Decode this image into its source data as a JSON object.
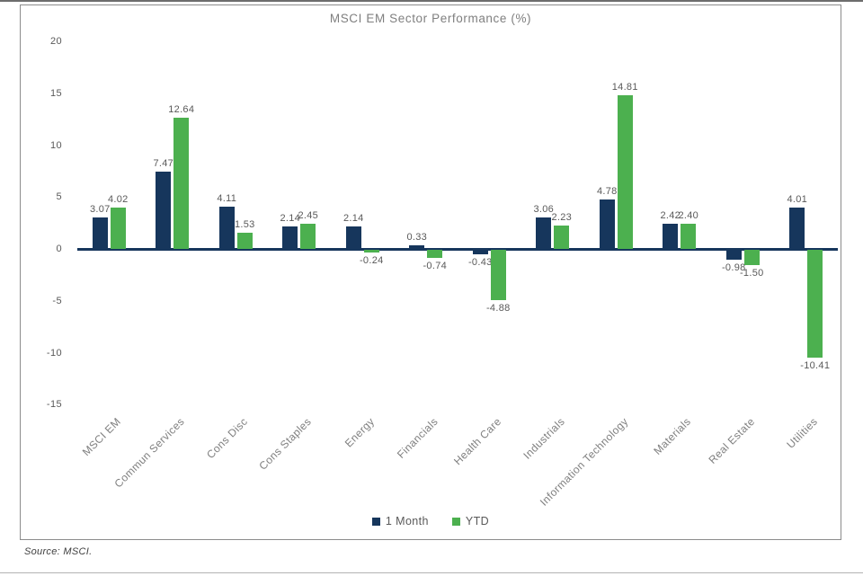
{
  "chart_data": {
    "type": "bar",
    "title": "MSCI EM Sector Performance (%)",
    "categories": [
      "MSCI EM",
      "Commun Services",
      "Cons Disc",
      "Cons Staples",
      "Energy",
      "Financials",
      "Health Care",
      "Industrials",
      "Information Technology",
      "Materials",
      "Real Estate",
      "Utilities"
    ],
    "series": [
      {
        "name": "1 Month",
        "color": "#16365c",
        "values": [
          3.07,
          7.47,
          4.11,
          2.14,
          2.14,
          0.33,
          -0.43,
          3.06,
          4.78,
          2.42,
          -0.98,
          4.01
        ]
      },
      {
        "name": "YTD",
        "color": "#4cb04f",
        "values": [
          4.02,
          12.64,
          1.53,
          2.45,
          -0.24,
          -0.74,
          -4.88,
          2.23,
          14.81,
          2.4,
          -1.5,
          -10.41
        ]
      }
    ],
    "ylim": [
      -15,
      20
    ],
    "yticks": [
      20,
      15,
      10,
      5,
      0,
      -5,
      -10,
      -15
    ],
    "grid": false,
    "legend_position": "bottom",
    "value_labels": true,
    "xlabel": "",
    "ylabel": ""
  },
  "colors": {
    "bar_1_month": "#16365c",
    "bar_ytd": "#4cb04f",
    "zero_axis_line": "#16365c",
    "axis_text": "#595959",
    "title_text": "#7f7f7f",
    "frame_border": "#8c8c8c"
  },
  "source_note": "Source: MSCI."
}
